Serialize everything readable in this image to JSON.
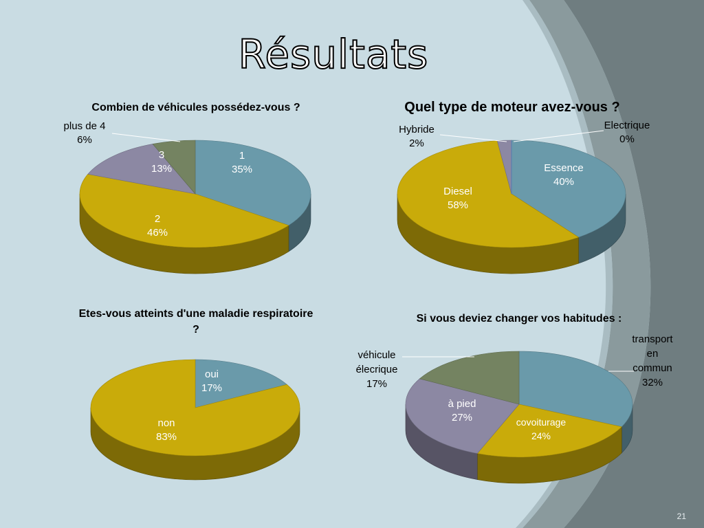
{
  "title": "Résultats",
  "page_number": "21",
  "colors": {
    "teal": "#6a9aaa",
    "gold": "#c9ab0a",
    "lavender": "#8c88a3",
    "olive": "#748361",
    "background": "#c9dce3",
    "dark_band": "#7d8b8e"
  },
  "chart_data": [
    {
      "type": "pie",
      "title": "Combien de véhicules possédez-vous ?",
      "slices": [
        {
          "label": "1",
          "value": 35,
          "display": "35%"
        },
        {
          "label": "2",
          "value": 46,
          "display": "46%"
        },
        {
          "label": "3",
          "value": 13,
          "display": "13%"
        },
        {
          "label": "plus de 4",
          "value": 6,
          "display": "6%"
        }
      ]
    },
    {
      "type": "pie",
      "title": "Quel type de moteur avez-vous ?",
      "slices": [
        {
          "label": "Essence",
          "value": 40,
          "display": "40%"
        },
        {
          "label": "Diesel",
          "value": 58,
          "display": "58%"
        },
        {
          "label": "Hybride",
          "value": 2,
          "display": "2%"
        },
        {
          "label": "Electrique",
          "value": 0,
          "display": "0%"
        }
      ]
    },
    {
      "type": "pie",
      "title": "Etes-vous atteints d'une maladie respiratoire ?",
      "slices": [
        {
          "label": "oui",
          "value": 17,
          "display": "17%"
        },
        {
          "label": "non",
          "value": 83,
          "display": "83%"
        }
      ]
    },
    {
      "type": "pie",
      "title": "Si vous deviez changer vos habitudes :",
      "slices": [
        {
          "label": "transport en commun",
          "value": 32,
          "display": "32%"
        },
        {
          "label": "covoiturage",
          "value": 24,
          "display": "24%"
        },
        {
          "label": "à pied",
          "value": 27,
          "display": "27%"
        },
        {
          "label": "véhicule élecrique",
          "value": 17,
          "display": "17%"
        }
      ]
    }
  ]
}
